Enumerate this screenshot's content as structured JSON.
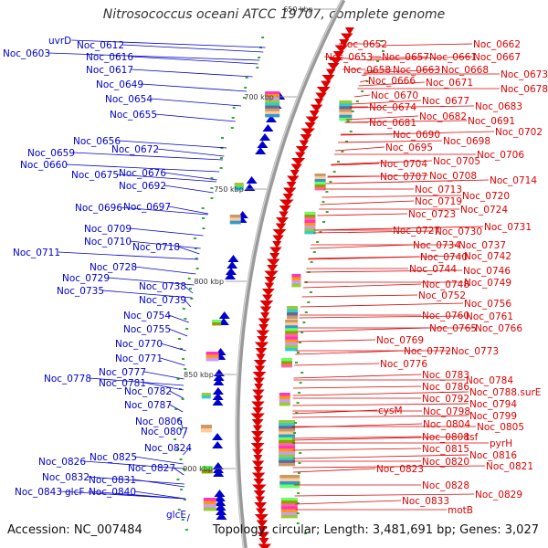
{
  "title": "Nitrosococcus oceani ATCC 19707, complete genome",
  "accession_text": "Accession: NC_007484",
  "topology_text": "Topology: circular; Length: 3,481,691 bp; Genes: 3,027",
  "colors": {
    "reverse_strand": "#0000cc",
    "forward_strand": "#dd0000",
    "backbone": "#888888"
  },
  "kbp_ticks": [
    "650 kbp",
    "700 kbp",
    "750 kbp",
    "800 kbp",
    "850 kbp",
    "900 kbp"
  ],
  "left_labels": [
    "uvrD",
    "Noc_0603",
    "Noc_0612",
    "Noc_0616",
    "Noc_0617",
    "Noc_0649",
    "Noc_0654",
    "Noc_0655",
    "Noc_0656",
    "Noc_0659",
    "Noc_0660",
    "Noc_0672",
    "Noc_0675",
    "Noc_0676",
    "Noc_0692",
    "Noc_0696",
    "Noc_0697",
    "Noc_0709",
    "Noc_0710",
    "Noc_0711",
    "Noc_0718",
    "Noc_0728",
    "Noc_0729",
    "Noc_0735",
    "Noc_0738",
    "Noc_0739",
    "Noc_0754",
    "Noc_0755",
    "Noc_0770",
    "Noc_0771",
    "Noc_0777",
    "Noc_0778",
    "Noc_0781",
    "Noc_0782",
    "Noc_0787",
    "Noc_0806",
    "Noc_0807",
    "Noc_0824",
    "Noc_0825",
    "Noc_0826",
    "Noc_0827",
    "Noc_0831",
    "Noc_0832",
    "Noc_0840",
    "Noc_0843",
    "glcF",
    "glcE"
  ],
  "right_labels": [
    "Noc_0652",
    "Noc_0662",
    "Noc_0653",
    "Noc_0657",
    "Noc_0661",
    "Noc_0667",
    "Noc_0658",
    "Noc_0663",
    "Noc_0668",
    "Noc_0673",
    "Noc_0666",
    "Noc_0671",
    "Noc_0678",
    "Noc_0670",
    "Noc_0677",
    "Noc_0674",
    "Noc_0683",
    "Noc_0682",
    "Noc_0681",
    "Noc_0691",
    "Noc_0702",
    "Noc_0690",
    "Noc_0698",
    "Noc_0695",
    "Noc_0706",
    "Noc_0704",
    "Noc_0705",
    "Noc_0707",
    "Noc_0708",
    "Noc_0714",
    "Noc_0713",
    "Noc_0720",
    "Noc_0719",
    "Noc_0724",
    "Noc_0723",
    "Noc_0731",
    "Noc_0727",
    "Noc_0730",
    "Noc_0734",
    "Noc_0737",
    "Noc_0740",
    "Noc_0742",
    "Noc_0744",
    "Noc_0746",
    "Noc_0748",
    "Noc_0749",
    "Noc_0752",
    "Noc_0756",
    "Noc_0760",
    "Noc_0761",
    "Noc_0765",
    "Noc_0766",
    "Noc_0769",
    "Noc_0772",
    "Noc_0773",
    "Noc_0776",
    "Noc_0783",
    "Noc_0784",
    "Noc_0786",
    "Noc_0788.surE",
    "Noc_0792",
    "Noc_0794",
    "cysM",
    "Noc_0798",
    "Noc_0799",
    "Noc_0804",
    "Noc_0805",
    "Noc_0808",
    "tsf",
    "pyrH",
    "Noc_0815",
    "Noc_0816",
    "Noc_0820",
    "Noc_0821",
    "Noc_0823",
    "Noc_0828",
    "Noc_0829",
    "Noc_0833",
    "motB"
  ]
}
